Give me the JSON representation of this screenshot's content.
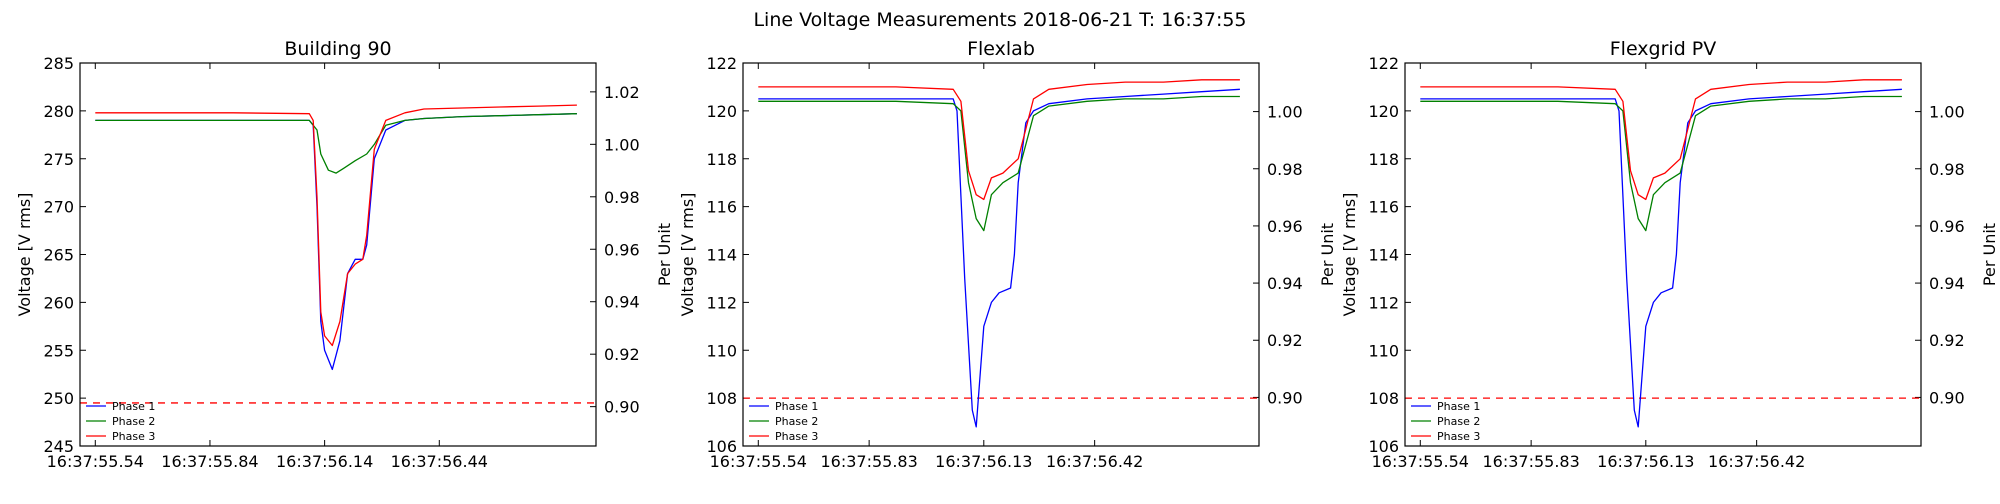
{
  "figure": {
    "suptitle": "Line Voltage Measurements 2018-06-21 T: 16:37:55"
  },
  "colors": {
    "phase1": "#0000ff",
    "phase2": "#008000",
    "phase3": "#ff0000",
    "threshold": "#ff0000"
  },
  "chart_data": [
    {
      "type": "line",
      "title": "Building 90",
      "ylabel": "Voltage [V rms]",
      "y2label": "Per Unit",
      "ylim": [
        245,
        285
      ],
      "yticks": [
        245,
        250,
        255,
        260,
        265,
        270,
        275,
        280,
        285
      ],
      "y2lim": [
        0.885,
        1.031
      ],
      "y2ticks": [
        "0.90",
        "0.92",
        "0.94",
        "0.96",
        "0.98",
        "1.00",
        "1.02"
      ],
      "xlim": [
        55.5,
        56.85
      ],
      "xticks": [
        55.54,
        55.84,
        56.14,
        56.44
      ],
      "xticklabels": [
        "16:37:55.54",
        "16:37:55.84",
        "16:37:56.14",
        "16:37:56.44"
      ],
      "threshold": {
        "value": 249.5,
        "style": "dashed",
        "color": "#ff0000"
      },
      "legend": {
        "position": "lower-left",
        "entries": [
          "Phase 1",
          "Phase 2",
          "Phase 3"
        ]
      },
      "series": [
        {
          "name": "Phase 1",
          "color": "#0000ff",
          "x": [
            55.54,
            55.7,
            55.9,
            56.1,
            56.11,
            56.12,
            56.13,
            56.14,
            56.16,
            56.18,
            56.2,
            56.22,
            56.24,
            56.25,
            56.27,
            56.3,
            56.35,
            56.4,
            56.5,
            56.6,
            56.7,
            56.8
          ],
          "y": [
            279.0,
            279.0,
            279.0,
            279.0,
            278.5,
            270.0,
            258.0,
            255.0,
            253.0,
            256.0,
            263.0,
            264.5,
            264.5,
            266.0,
            275.0,
            278.0,
            279.0,
            279.2,
            279.4,
            279.5,
            279.6,
            279.7
          ]
        },
        {
          "name": "Phase 2",
          "color": "#008000",
          "x": [
            55.54,
            55.7,
            55.9,
            56.1,
            56.12,
            56.13,
            56.15,
            56.17,
            56.19,
            56.22,
            56.25,
            56.27,
            56.3,
            56.35,
            56.4,
            56.5,
            56.6,
            56.7,
            56.8
          ],
          "y": [
            279.0,
            279.0,
            279.0,
            279.0,
            278.0,
            275.5,
            273.8,
            273.5,
            274.0,
            274.8,
            275.5,
            276.5,
            278.5,
            279.0,
            279.2,
            279.4,
            279.5,
            279.6,
            279.7
          ]
        },
        {
          "name": "Phase 3",
          "color": "#ff0000",
          "x": [
            55.54,
            55.7,
            55.9,
            56.1,
            56.11,
            56.12,
            56.13,
            56.14,
            56.16,
            56.18,
            56.2,
            56.22,
            56.24,
            56.25,
            56.27,
            56.3,
            56.35,
            56.4,
            56.5,
            56.6,
            56.7,
            56.8
          ],
          "y": [
            279.8,
            279.8,
            279.8,
            279.7,
            279.0,
            271.0,
            259.0,
            256.5,
            255.5,
            258.0,
            263.0,
            264.0,
            264.5,
            267.0,
            276.0,
            279.0,
            279.8,
            280.2,
            280.3,
            280.4,
            280.5,
            280.6
          ]
        }
      ]
    },
    {
      "type": "line",
      "title": "Flexlab",
      "ylabel": "Voltage [V rms]",
      "y2label": "Per Unit",
      "ylim": [
        106,
        122
      ],
      "yticks": [
        106,
        108,
        110,
        112,
        114,
        116,
        118,
        120,
        122
      ],
      "y2lim": [
        0.883,
        1.017
      ],
      "y2ticks": [
        "0.90",
        "0.92",
        "0.94",
        "0.96",
        "0.98",
        "1.00"
      ],
      "xlim": [
        55.5,
        56.85
      ],
      "xticks": [
        55.54,
        55.83,
        56.13,
        56.42
      ],
      "xticklabels": [
        "16:37:55.54",
        "16:37:55.83",
        "16:37:56.13",
        "16:37:56.42"
      ],
      "threshold": {
        "value": 108,
        "style": "dashed",
        "color": "#ff0000"
      },
      "legend": {
        "position": "lower-left",
        "entries": [
          "Phase 1",
          "Phase 2",
          "Phase 3"
        ]
      },
      "series": [
        {
          "name": "Phase 1",
          "color": "#0000ff",
          "x": [
            55.54,
            55.7,
            55.9,
            56.05,
            56.06,
            56.08,
            56.1,
            56.11,
            56.13,
            56.15,
            56.17,
            56.2,
            56.21,
            56.22,
            56.24,
            56.26,
            56.3,
            56.4,
            56.5,
            56.6,
            56.7,
            56.8
          ],
          "y": [
            120.5,
            120.5,
            120.5,
            120.5,
            120.0,
            113.0,
            107.5,
            106.8,
            111.0,
            112.0,
            112.4,
            112.6,
            114.0,
            117.0,
            119.5,
            120.0,
            120.3,
            120.5,
            120.6,
            120.7,
            120.8,
            120.9
          ]
        },
        {
          "name": "Phase 2",
          "color": "#008000",
          "x": [
            55.54,
            55.7,
            55.9,
            56.05,
            56.07,
            56.09,
            56.11,
            56.13,
            56.15,
            56.18,
            56.22,
            56.26,
            56.3,
            56.4,
            56.5,
            56.6,
            56.7,
            56.8
          ],
          "y": [
            120.4,
            120.4,
            120.4,
            120.3,
            120.0,
            117.0,
            115.5,
            115.0,
            116.5,
            117.0,
            117.4,
            119.8,
            120.2,
            120.4,
            120.5,
            120.5,
            120.6,
            120.6
          ]
        },
        {
          "name": "Phase 3",
          "color": "#ff0000",
          "x": [
            55.54,
            55.7,
            55.9,
            56.05,
            56.07,
            56.09,
            56.11,
            56.13,
            56.15,
            56.18,
            56.22,
            56.26,
            56.3,
            56.4,
            56.5,
            56.6,
            56.7,
            56.8
          ],
          "y": [
            121.0,
            121.0,
            121.0,
            120.9,
            120.4,
            117.5,
            116.5,
            116.3,
            117.2,
            117.4,
            118.0,
            120.5,
            120.9,
            121.1,
            121.2,
            121.2,
            121.3,
            121.3
          ]
        }
      ]
    },
    {
      "type": "line",
      "title": "Flexgrid PV",
      "ylabel": "Voltage [V rms]",
      "y2label": "Per Unit",
      "ylim": [
        106,
        122
      ],
      "yticks": [
        106,
        108,
        110,
        112,
        114,
        116,
        118,
        120,
        122
      ],
      "y2lim": [
        0.883,
        1.017
      ],
      "y2ticks": [
        "0.90",
        "0.92",
        "0.94",
        "0.96",
        "0.98",
        "1.00"
      ],
      "xlim": [
        55.5,
        56.85
      ],
      "xticks": [
        55.54,
        55.83,
        56.13,
        56.42
      ],
      "xticklabels": [
        "16:37:55.54",
        "16:37:55.83",
        "16:37:56.13",
        "16:37:56.42"
      ],
      "threshold": {
        "value": 108,
        "style": "dashed",
        "color": "#ff0000"
      },
      "legend": {
        "position": "lower-left",
        "entries": [
          "Phase 1",
          "Phase 2",
          "Phase 3"
        ]
      },
      "series": [
        {
          "name": "Phase 1",
          "color": "#0000ff",
          "x": [
            55.54,
            55.7,
            55.9,
            56.05,
            56.06,
            56.08,
            56.1,
            56.11,
            56.13,
            56.15,
            56.17,
            56.2,
            56.21,
            56.22,
            56.24,
            56.26,
            56.3,
            56.4,
            56.5,
            56.6,
            56.7,
            56.8
          ],
          "y": [
            120.5,
            120.5,
            120.5,
            120.5,
            120.0,
            113.0,
            107.5,
            106.8,
            111.0,
            112.0,
            112.4,
            112.6,
            114.0,
            117.0,
            119.5,
            120.0,
            120.3,
            120.5,
            120.6,
            120.7,
            120.8,
            120.9
          ]
        },
        {
          "name": "Phase 2",
          "color": "#008000",
          "x": [
            55.54,
            55.7,
            55.9,
            56.05,
            56.07,
            56.09,
            56.11,
            56.13,
            56.15,
            56.18,
            56.22,
            56.26,
            56.3,
            56.4,
            56.5,
            56.6,
            56.7,
            56.8
          ],
          "y": [
            120.4,
            120.4,
            120.4,
            120.3,
            120.0,
            117.0,
            115.5,
            115.0,
            116.5,
            117.0,
            117.4,
            119.8,
            120.2,
            120.4,
            120.5,
            120.5,
            120.6,
            120.6
          ]
        },
        {
          "name": "Phase 3",
          "color": "#ff0000",
          "x": [
            55.54,
            55.7,
            55.9,
            56.05,
            56.07,
            56.09,
            56.11,
            56.13,
            56.15,
            56.18,
            56.22,
            56.26,
            56.3,
            56.4,
            56.5,
            56.6,
            56.7,
            56.8
          ],
          "y": [
            121.0,
            121.0,
            121.0,
            120.9,
            120.4,
            117.5,
            116.5,
            116.3,
            117.2,
            117.4,
            118.0,
            120.5,
            120.9,
            121.1,
            121.2,
            121.2,
            121.3,
            121.3
          ]
        }
      ]
    }
  ]
}
